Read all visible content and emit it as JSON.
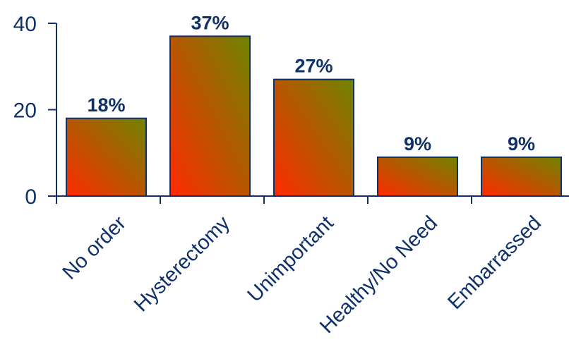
{
  "chart_data": {
    "type": "bar",
    "categories": [
      "No order",
      "Hysterectomy",
      "Unimportant",
      "Healthy/No Need",
      "Embarrassed"
    ],
    "values": [
      18,
      37,
      27,
      9,
      9
    ],
    "data_labels": [
      "18%",
      "37%",
      "27%",
      "9%",
      "9%"
    ],
    "y_ticks": [
      "0",
      "20",
      "40"
    ],
    "ylim": [
      0,
      40
    ],
    "grid": false,
    "legend": "none",
    "colors": {
      "bar_gradient_start": "#ff2a00",
      "bar_gradient_end": "#6f8400",
      "axis": "#10306a",
      "text": "#10306a"
    }
  }
}
